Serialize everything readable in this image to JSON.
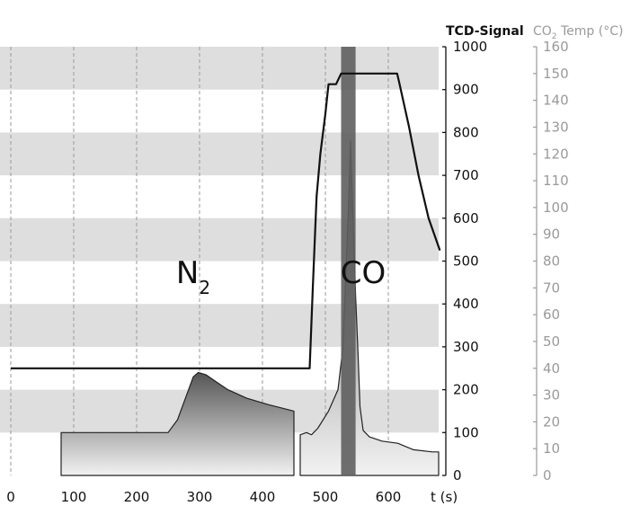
{
  "colors": {
    "band": "#dedede",
    "grid": "#999999",
    "axis_left": "#111111",
    "axis_right": "#9a9a9a",
    "temp_line": "#111111",
    "peak_fill_dark": "#555555",
    "peak_fill_light": "#f2f2f2",
    "co_column": "#5f5f5f"
  },
  "chart_data": {
    "type": "area",
    "x_axis": {
      "label": "t (s)",
      "range": [
        0,
        680
      ],
      "ticks": [
        0,
        100,
        200,
        300,
        400,
        500,
        600
      ]
    },
    "y_axes": {
      "left": {
        "label": "TCD-Signal",
        "range": [
          0,
          1000
        ],
        "ticks": [
          0,
          100,
          200,
          300,
          400,
          500,
          600,
          700,
          800,
          900,
          1000
        ]
      },
      "right": {
        "label": "CO",
        "label_sub": "2",
        "label_suffix": " Temp (°C)",
        "range": [
          0,
          160
        ],
        "ticks": [
          0,
          10,
          20,
          30,
          40,
          50,
          60,
          70,
          80,
          90,
          100,
          110,
          120,
          130,
          140,
          150,
          160
        ]
      }
    },
    "grid": true,
    "vertical_gridlines_x": [
      0,
      100,
      200,
      300,
      400,
      500,
      600
    ],
    "shaded_bands": [
      [
        100,
        200
      ],
      [
        300,
        400
      ],
      [
        500,
        600
      ],
      [
        700,
        800
      ],
      [
        900,
        1000
      ]
    ],
    "series": [
      {
        "axis": "left",
        "style": "area",
        "points": [
          [
            80,
            0
          ],
          [
            80,
            100
          ],
          [
            250,
            100
          ],
          [
            265,
            130
          ],
          [
            280,
            190
          ],
          [
            290,
            230
          ],
          [
            298,
            240
          ],
          [
            310,
            235
          ],
          [
            325,
            220
          ],
          [
            345,
            200
          ],
          [
            375,
            180
          ],
          [
            410,
            165
          ],
          [
            450,
            150
          ],
          [
            450,
            0
          ]
        ]
      },
      {
        "axis": "left",
        "style": "area",
        "points": [
          [
            460,
            0
          ],
          [
            460,
            95
          ],
          [
            470,
            100
          ],
          [
            478,
            95
          ],
          [
            488,
            110
          ],
          [
            505,
            150
          ],
          [
            520,
            200
          ],
          [
            528,
            300
          ],
          [
            532,
            450
          ],
          [
            536,
            600
          ],
          [
            540,
            780
          ],
          [
            544,
            600
          ],
          [
            548,
            420
          ],
          [
            552,
            280
          ],
          [
            555,
            160
          ],
          [
            560,
            105
          ],
          [
            570,
            90
          ],
          [
            590,
            80
          ],
          [
            615,
            75
          ],
          [
            640,
            60
          ],
          [
            670,
            55
          ],
          [
            680,
            55
          ],
          [
            680,
            0
          ]
        ]
      },
      {
        "axis": "left",
        "style": "column",
        "x_range": [
          525,
          548
        ],
        "y_range": [
          0,
          1000
        ]
      },
      {
        "axis": "right",
        "style": "line",
        "points": [
          [
            0,
            40
          ],
          [
            475,
            40
          ],
          [
            480,
            70
          ],
          [
            486,
            104
          ],
          [
            492,
            120
          ],
          [
            500,
            135
          ],
          [
            505,
            146
          ],
          [
            517,
            146
          ],
          [
            525,
            150
          ],
          [
            544,
            150
          ],
          [
            614,
            150
          ],
          [
            617,
            147
          ],
          [
            633,
            130
          ],
          [
            648,
            112
          ],
          [
            664,
            96
          ],
          [
            682,
            84
          ]
        ]
      }
    ],
    "annotations": [
      {
        "text": "N",
        "sub": "2",
        "x": 290,
        "y": 480
      },
      {
        "text": "CO",
        "x": 560,
        "y": 480
      }
    ]
  }
}
